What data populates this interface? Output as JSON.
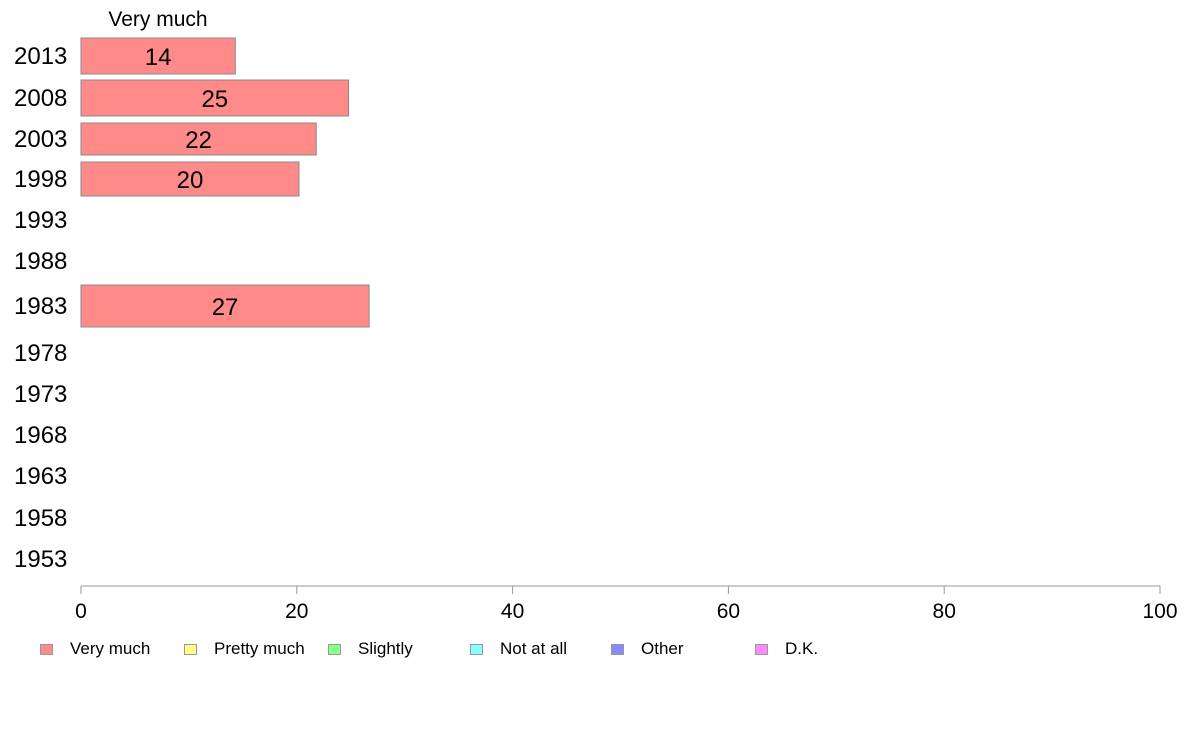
{
  "chart_data": {
    "type": "bar",
    "orientation": "horizontal",
    "stacked": true,
    "series_header": "Very much",
    "categories": [
      "2013",
      "2008",
      "2003",
      "1998",
      "1993",
      "1988",
      "1983",
      "1978",
      "1973",
      "1968",
      "1963",
      "1958",
      "1953"
    ],
    "series": [
      {
        "name": "Very much",
        "color": "#ff8a8a",
        "values": [
          14.3,
          24.8,
          21.8,
          20.2,
          null,
          null,
          26.7,
          null,
          null,
          null,
          null,
          null,
          null
        ],
        "labels": [
          "14",
          "25",
          "22",
          "20",
          "",
          "",
          "27",
          "",
          "",
          "",
          "",
          "",
          ""
        ]
      },
      {
        "name": "Pretty much",
        "color": "#ffff88",
        "values": [
          null,
          null,
          null,
          null,
          null,
          null,
          null,
          null,
          null,
          null,
          null,
          null,
          null
        ]
      },
      {
        "name": "Slightly",
        "color": "#88ff88",
        "values": [
          null,
          null,
          null,
          null,
          null,
          null,
          null,
          null,
          null,
          null,
          null,
          null,
          null
        ]
      },
      {
        "name": "Not at all",
        "color": "#88ffff",
        "values": [
          null,
          null,
          null,
          null,
          null,
          null,
          null,
          null,
          null,
          null,
          null,
          null,
          null
        ]
      },
      {
        "name": "Other",
        "color": "#8888ff",
        "values": [
          null,
          null,
          null,
          null,
          null,
          null,
          null,
          null,
          null,
          null,
          null,
          null,
          null
        ]
      },
      {
        "name": "D.K.",
        "color": "#ff88ff",
        "values": [
          null,
          null,
          null,
          null,
          null,
          null,
          null,
          null,
          null,
          null,
          null,
          null,
          null
        ]
      }
    ],
    "xlim": [
      0,
      100
    ],
    "xticks": [
      "0",
      "20",
      "40",
      "60",
      "80",
      "100"
    ],
    "grid": false,
    "legend_position": "bottom"
  }
}
